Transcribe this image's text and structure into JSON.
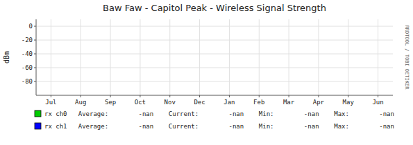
{
  "chart_data": {
    "type": "line",
    "title": "Baw Faw - Capitol Peak - Wireless Signal Strength",
    "y_label": "dBm",
    "categories": [
      "Jul",
      "Aug",
      "Sep",
      "Oct",
      "Nov",
      "Dec",
      "Jan",
      "Feb",
      "Mar",
      "Apr",
      "May",
      "Jun"
    ],
    "series": [
      {
        "name": "rx ch0",
        "color": "#00cc00",
        "values": [
          null,
          null,
          null,
          null,
          null,
          null,
          null,
          null,
          null,
          null,
          null,
          null
        ]
      },
      {
        "name": "rx ch1",
        "color": "#0000ff",
        "values": [
          null,
          null,
          null,
          null,
          null,
          null,
          null,
          null,
          null,
          null,
          null,
          null
        ]
      }
    ],
    "annotations": [
      "Average:        -nan    Current:        -nan    Min:        -nan    Max:        -nan",
      "Average:        -nan    Current:        -nan    Min:        -nan    Max:        -nan",
      "RRDTOOL / TOBI OETIKER"
    ],
    "ylim": [
      -100,
      10
    ],
    "yticks": [
      0,
      -20,
      -40,
      -60,
      -80
    ],
    "grid": true,
    "legend": "bottom"
  }
}
